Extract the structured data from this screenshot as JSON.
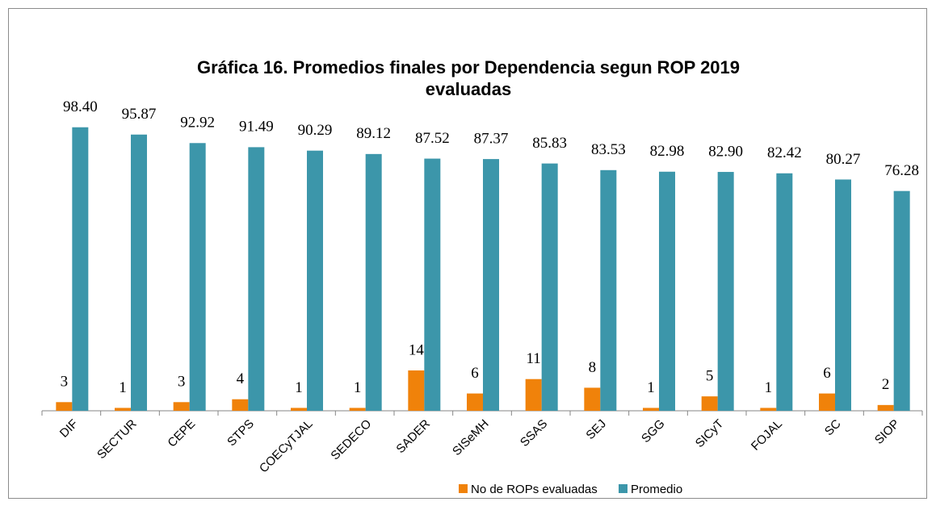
{
  "chart_data": {
    "type": "bar",
    "title": "Gráfica 16. Promedios finales por Dependencia segun ROP 2019 evaluadas",
    "categories": [
      "DIF",
      "SECTUR",
      "CEPE",
      "STPS",
      "COECyTJAL",
      "SEDECO",
      "SADER",
      "SISeMH",
      "SSAS",
      "SEJ",
      "SGG",
      "SICyT",
      "FOJAL",
      "SC",
      "SIOP"
    ],
    "series": [
      {
        "name": "No de ROPs evaluadas",
        "color": "#f0820a",
        "values": [
          3,
          1,
          3,
          4,
          1,
          1,
          14,
          6,
          11,
          8,
          1,
          5,
          1,
          6,
          2
        ]
      },
      {
        "name": "Promedio",
        "color": "#3c96aa",
        "values": [
          98.4,
          95.87,
          92.92,
          91.49,
          90.29,
          89.12,
          87.52,
          87.37,
          85.83,
          83.53,
          82.98,
          82.9,
          82.42,
          80.27,
          76.28
        ],
        "value_labels": [
          "98.40",
          "95.87",
          "92.92",
          "91.49",
          "90.29",
          "89.12",
          "87.52",
          "87.37",
          "85.83",
          "83.53",
          "82.98",
          "82.90",
          "82.42",
          "80.27",
          "76.28"
        ]
      }
    ],
    "ylim": [
      0,
      100
    ],
    "legend": "bottom"
  }
}
